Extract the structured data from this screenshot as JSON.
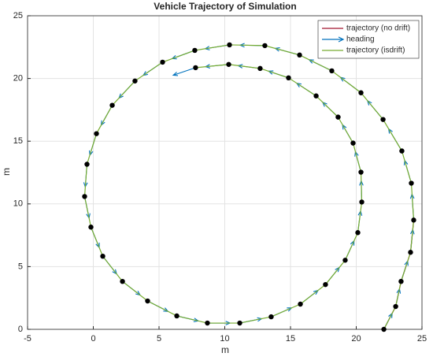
{
  "chart_data": {
    "type": "trajectory",
    "title": "Vehicle Trajectory of Simulation",
    "x_label": "m",
    "y_label": "m",
    "xlim": [
      -5,
      25
    ],
    "ylim": [
      0,
      25
    ],
    "xticks": [
      -5,
      0,
      5,
      10,
      15,
      20,
      25
    ],
    "yticks": [
      0,
      5,
      10,
      15,
      20,
      25
    ],
    "grid": true,
    "legend": "top-right",
    "series": [
      {
        "name": "trajectory (no drift)",
        "color": "#a2142f",
        "x": [
          22.1,
          23.0,
          23.41,
          24.13,
          24.37
        ],
        "y": [
          0,
          1.82,
          3.82,
          6.14,
          8.71
        ]
      },
      {
        "name": "heading",
        "color": "#0072bd",
        "kind": "quiver",
        "u": [
          0.63,
          0.29,
          0.5,
          0.17,
          -0.13,
          -0.5,
          -1.0,
          -1.18,
          -1.55,
          -1.72,
          -1.85,
          -1.88,
          -1.85,
          -1.72,
          -1.47,
          -1.21,
          -0.84,
          -0.5,
          -0.13,
          0.34,
          0.63,
          1.05,
          1.34,
          1.55,
          1.63,
          1.72,
          1.67,
          1.55,
          1.34,
          1.05,
          0.67,
          0.21,
          -0.04,
          -0.42,
          -0.8,
          -1.17,
          -1.47,
          -1.51,
          -1.67,
          -1.76,
          -1.7
        ],
        "v": [
          1.27,
          1.4,
          1.62,
          1.8,
          2.06,
          1.8,
          1.76,
          1.49,
          1.23,
          0.88,
          0.53,
          0.04,
          -0.31,
          -0.66,
          -1.05,
          -1.36,
          -1.58,
          -1.71,
          -1.8,
          -1.71,
          -1.62,
          -1.41,
          -1.09,
          -0.83,
          -0.4,
          0,
          0.35,
          0.71,
          1.09,
          1.36,
          1.54,
          1.71,
          1.67,
          1.62,
          1.45,
          1.18,
          1.01,
          0.53,
          0.22,
          -0.18,
          -0.6
        ]
      },
      {
        "name": "trajectory (isdrift)",
        "color": "#77ac30",
        "marker_color": "#000000",
        "x": [
          22.1,
          23.0,
          23.41,
          24.13,
          24.37,
          24.19,
          23.47,
          22.04,
          20.36,
          18.14,
          15.69,
          13.05,
          10.36,
          7.72,
          5.27,
          3.17,
          1.44,
          0.24,
          -0.48,
          -0.66,
          -0.18,
          0.72,
          2.22,
          4.13,
          6.35,
          8.68,
          11.14,
          13.53,
          15.75,
          17.66,
          19.16,
          20.12,
          20.42,
          20.36,
          19.76,
          18.62,
          16.95,
          14.85,
          12.69,
          10.3,
          7.78
        ],
        "y": [
          0,
          1.82,
          3.82,
          6.14,
          8.71,
          11.65,
          14.22,
          16.73,
          18.86,
          20.61,
          21.87,
          22.62,
          22.68,
          22.24,
          21.3,
          19.8,
          17.86,
          15.6,
          13.16,
          10.59,
          8.15,
          5.83,
          3.82,
          2.26,
          1.07,
          0.5,
          0.5,
          1.0,
          2.01,
          3.57,
          5.51,
          7.71,
          10.15,
          12.53,
          14.85,
          16.92,
          18.61,
          20.05,
          20.8,
          21.12,
          20.86
        ]
      }
    ]
  }
}
